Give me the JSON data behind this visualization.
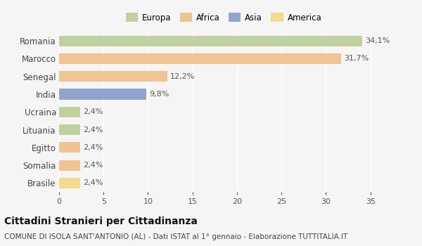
{
  "categories": [
    "Romania",
    "Marocco",
    "Senegal",
    "India",
    "Ucraina",
    "Lituania",
    "Egitto",
    "Somalia",
    "Brasile"
  ],
  "values": [
    34.1,
    31.7,
    12.2,
    9.8,
    2.4,
    2.4,
    2.4,
    2.4,
    2.4
  ],
  "labels": [
    "34,1%",
    "31,7%",
    "12,2%",
    "9,8%",
    "2,4%",
    "2,4%",
    "2,4%",
    "2,4%",
    "2,4%"
  ],
  "colors": [
    "#b5c98e",
    "#f0b97d",
    "#f0b97d",
    "#7b93c4",
    "#b5c98e",
    "#b5c98e",
    "#f0b97d",
    "#f0b97d",
    "#f5d47a"
  ],
  "legend_labels": [
    "Europa",
    "Africa",
    "Asia",
    "America"
  ],
  "legend_colors": [
    "#b5c98e",
    "#f0b97d",
    "#7b93c4",
    "#f5d47a"
  ],
  "xlim": [
    0,
    37
  ],
  "xticks": [
    0,
    5,
    10,
    15,
    20,
    25,
    30,
    35
  ],
  "title_main": "Cittadini Stranieri per Cittadinanza",
  "title_sub": "COMUNE DI ISOLA SANT'ANTONIO (AL) - Dati ISTAT al 1° gennaio - Elaborazione TUTTITALIA.IT",
  "background_color": "#f5f5f5",
  "bar_height": 0.6,
  "label_fontsize": 8,
  "ylabel_fontsize": 8.5,
  "xtick_fontsize": 8,
  "title_fontsize": 10,
  "subtitle_fontsize": 7.5
}
